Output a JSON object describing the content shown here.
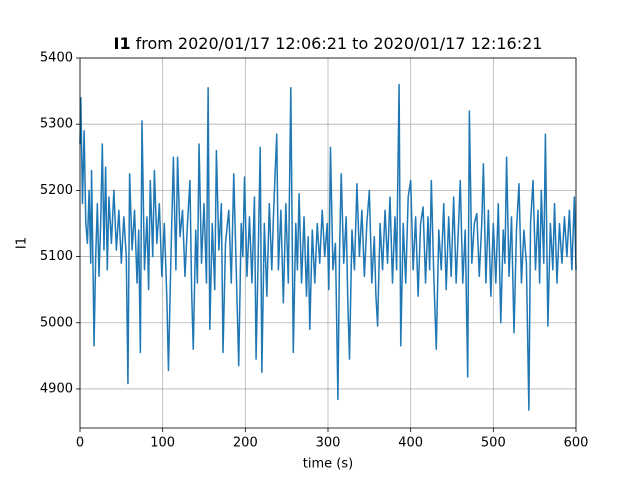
{
  "chart_data": {
    "type": "line",
    "title_bold": "I1",
    "title": "from 2020/01/17 12:06:21 to 2020/01/17 12:16:21",
    "xlabel": "time (s)",
    "ylabel": "I1",
    "x": [
      0,
      1,
      3,
      5,
      7,
      9,
      11,
      13,
      14,
      16,
      17,
      19,
      21,
      23,
      25,
      27,
      29,
      31,
      33,
      35,
      38,
      41,
      44,
      47,
      50,
      53,
      56,
      58,
      60,
      63,
      66,
      69,
      71,
      73,
      75,
      78,
      81,
      83,
      85,
      88,
      90,
      93,
      96,
      99,
      102,
      105,
      107,
      110,
      113,
      116,
      118,
      121,
      124,
      127,
      130,
      133,
      135,
      137,
      140,
      142,
      144,
      147,
      150,
      153,
      155,
      157,
      160,
      163,
      165,
      168,
      171,
      173,
      176,
      180,
      183,
      186,
      189,
      192,
      195,
      197,
      199,
      202,
      205,
      208,
      211,
      213,
      216,
      218,
      220,
      223,
      226,
      229,
      232,
      234,
      236,
      238,
      240,
      243,
      246,
      249,
      252,
      255,
      258,
      261,
      263,
      265,
      268,
      271,
      274,
      276,
      278,
      281,
      284,
      287,
      290,
      293,
      296,
      299,
      301,
      303,
      306,
      309,
      312,
      314,
      316,
      319,
      322,
      324,
      326,
      329,
      332,
      335,
      338,
      341,
      344,
      347,
      350,
      353,
      356,
      358,
      360,
      363,
      366,
      369,
      372,
      375,
      378,
      381,
      383,
      386,
      388,
      391,
      394,
      397,
      400,
      403,
      406,
      409,
      412,
      415,
      418,
      421,
      423,
      425,
      428,
      431,
      434,
      437,
      440,
      443,
      446,
      449,
      452,
      455,
      458,
      460,
      463,
      466,
      469,
      471,
      474,
      477,
      480,
      483,
      486,
      488,
      491,
      494,
      497,
      500,
      503,
      506,
      509,
      512,
      514,
      516,
      519,
      522,
      525,
      528,
      531,
      534,
      537,
      540,
      543,
      545,
      548,
      551,
      554,
      556,
      558,
      561,
      563,
      566,
      569,
      572,
      574,
      577,
      580,
      583,
      586,
      589,
      592,
      595,
      598,
      600
    ],
    "series": [
      {
        "color": "#1f77b4",
        "values": [
          5270,
          5340,
          5180,
          5290,
          5150,
          5120,
          5200,
          5090,
          5230,
          5060,
          4965,
          5100,
          5180,
          5070,
          5150,
          5270,
          5110,
          5235,
          5080,
          5190,
          5120,
          5200,
          5110,
          5170,
          5090,
          5160,
          5100,
          4908,
          5225,
          5110,
          5170,
          5060,
          5140,
          4955,
          5305,
          5080,
          5160,
          5050,
          5215,
          5100,
          5230,
          5120,
          5180,
          5070,
          5150,
          5040,
          4928,
          5100,
          5250,
          5080,
          5250,
          5130,
          5170,
          5070,
          5150,
          5215,
          5050,
          4960,
          5140,
          5060,
          5270,
          5090,
          5180,
          5060,
          5355,
          4990,
          5150,
          5050,
          5260,
          5110,
          5180,
          4955,
          5120,
          5170,
          5060,
          5225,
          5080,
          4935,
          5150,
          5100,
          5220,
          5070,
          5160,
          5060,
          5190,
          4945,
          5130,
          5265,
          4925,
          5150,
          5040,
          5180,
          5080,
          5160,
          5225,
          5285,
          5080,
          5170,
          5030,
          5180,
          5060,
          5355,
          4955,
          5150,
          5080,
          5195,
          5060,
          5160,
          5040,
          5130,
          4990,
          5140,
          5060,
          5150,
          5090,
          5170,
          5100,
          5150,
          5050,
          5265,
          5080,
          5120,
          4884,
          5110,
          5225,
          5090,
          5160,
          5030,
          4945,
          5140,
          5080,
          5210,
          5100,
          5170,
          5070,
          5150,
          5200,
          5060,
          5130,
          5040,
          4995,
          5150,
          5080,
          5170,
          5090,
          5190,
          5060,
          5160,
          5080,
          5360,
          4965,
          5150,
          5060,
          5190,
          5215,
          5080,
          5160,
          5040,
          5150,
          5175,
          5060,
          5160,
          5080,
          5215,
          5070,
          4960,
          5140,
          5080,
          5180,
          5050,
          5160,
          5070,
          5190,
          5060,
          5150,
          5215,
          5060,
          5140,
          4918,
          5320,
          5090,
          5150,
          5165,
          5070,
          5150,
          5240,
          5060,
          5170,
          5040,
          5150,
          5060,
          5180,
          5000,
          5140,
          5090,
          5250,
          5070,
          5160,
          4985,
          5140,
          5210,
          5060,
          5140,
          5090,
          4868,
          5150,
          5215,
          5080,
          5170,
          5060,
          5200,
          5090,
          5285,
          4995,
          5150,
          5080,
          5180,
          5060,
          5150,
          5090,
          5160,
          5100,
          5170,
          5080,
          5190,
          5080
        ]
      }
    ],
    "xlim": [
      0,
      600
    ],
    "xticks": [
      0,
      100,
      200,
      300,
      400,
      500,
      600
    ],
    "ylim": [
      4841,
      5400
    ],
    "yticks": [
      4900,
      5000,
      5100,
      5200,
      5300,
      5400
    ],
    "grid": true
  }
}
